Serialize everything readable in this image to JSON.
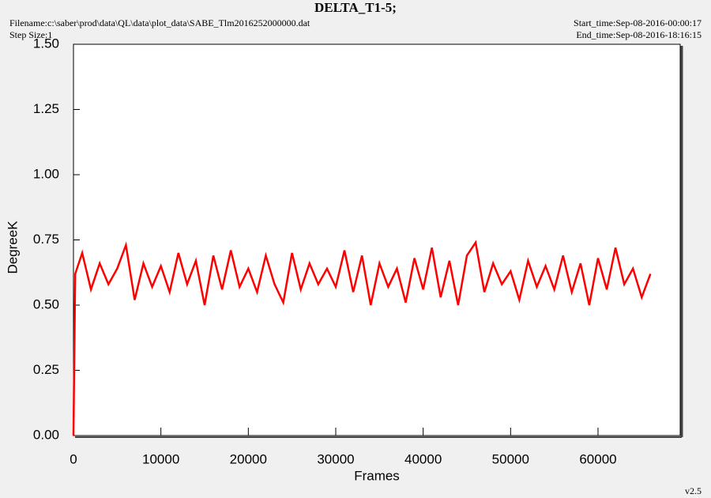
{
  "chart_data": {
    "type": "line",
    "title": "DELTA_T1-5;",
    "filename": "Filename:c:\\saber\\prod\\data\\QL\\data\\plot_data\\SABE_Tlm2016252000000.dat",
    "step_size": "Step Size:1",
    "start_time": "Start_time:Sep-08-2016-00:00:17",
    "end_time": "End_time:Sep-08-2016-18:16:15",
    "version": "v2.5",
    "x_label": "Frames",
    "y_label": "DegreeK",
    "xlim": [
      0,
      69400
    ],
    "ylim": [
      0,
      1.5
    ],
    "xticks": [
      0,
      10000,
      20000,
      30000,
      40000,
      50000,
      60000
    ],
    "yticks": [
      {
        "value": 0,
        "label": "0.00"
      },
      {
        "value": 0.25,
        "label": "0.25"
      },
      {
        "value": 0.5,
        "label": "0.50"
      },
      {
        "value": 0.75,
        "label": "0.75"
      },
      {
        "value": 1,
        "label": "1.00"
      },
      {
        "value": 1.25,
        "label": "1.25"
      },
      {
        "value": 1.5,
        "label": "1.50"
      }
    ],
    "x": [
      0,
      200,
      1000,
      2000,
      3000,
      4000,
      5000,
      6000,
      7000,
      8000,
      9000,
      10000,
      11000,
      12000,
      13000,
      14000,
      15000,
      16000,
      17000,
      18000,
      19000,
      20000,
      21000,
      22000,
      23000,
      24000,
      25000,
      26000,
      27000,
      28000,
      29000,
      30000,
      31000,
      32000,
      33000,
      34000,
      35000,
      36000,
      37000,
      38000,
      39000,
      40000,
      41000,
      42000,
      43000,
      44000,
      45000,
      46000,
      47000,
      48000,
      49000,
      50000,
      51000,
      52000,
      53000,
      54000,
      55000,
      56000,
      57000,
      58000,
      59000,
      60000,
      61000,
      62000,
      63000,
      64000,
      65000,
      66000
    ],
    "series": [
      {
        "color": "#ff0000",
        "values": [
          0,
          0.62,
          0.7,
          0.56,
          0.66,
          0.58,
          0.64,
          0.73,
          0.52,
          0.66,
          0.57,
          0.65,
          0.55,
          0.7,
          0.58,
          0.67,
          0.5,
          0.69,
          0.56,
          0.71,
          0.57,
          0.64,
          0.55,
          0.69,
          0.58,
          0.51,
          0.7,
          0.56,
          0.66,
          0.58,
          0.64,
          0.57,
          0.71,
          0.55,
          0.69,
          0.5,
          0.66,
          0.57,
          0.64,
          0.51,
          0.68,
          0.56,
          0.72,
          0.53,
          0.67,
          0.5,
          0.69,
          0.74,
          0.55,
          0.66,
          0.58,
          0.63,
          0.52,
          0.67,
          0.57,
          0.65,
          0.56,
          0.69,
          0.55,
          0.66,
          0.5,
          0.68,
          0.56,
          0.72,
          0.58,
          0.64,
          0.53,
          0.62
        ]
      }
    ]
  }
}
